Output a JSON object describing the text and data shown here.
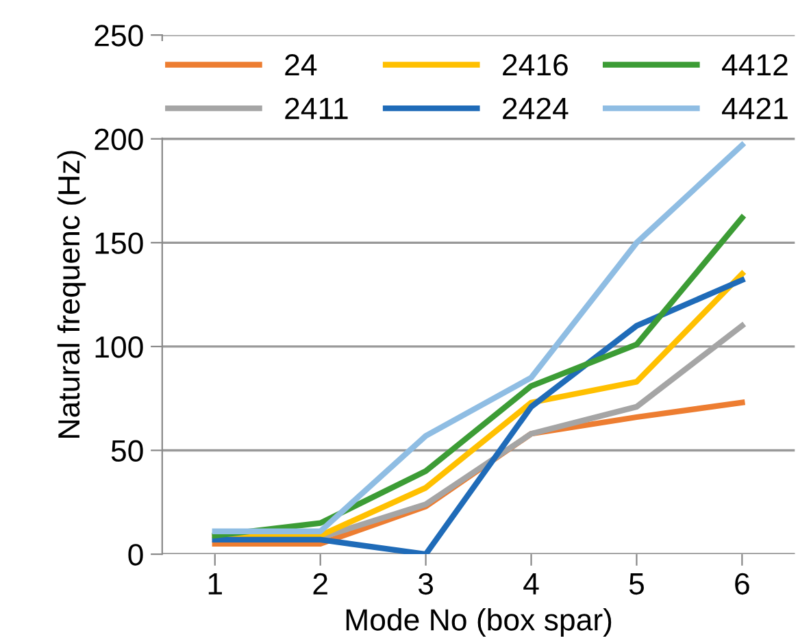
{
  "chart_data": {
    "type": "line",
    "xlabel": "Mode No (box spar)",
    "ylabel": "Natural frequenc (Hz)",
    "categories": [
      "1",
      "2",
      "3",
      "4",
      "5",
      "6"
    ],
    "ylim": [
      0,
      250
    ],
    "yticks": [
      0,
      50,
      100,
      150,
      200,
      250
    ],
    "grid": "y",
    "legend": "top",
    "series": [
      {
        "name": "24",
        "color": "#ed7d31",
        "values": [
          5,
          5,
          23,
          58,
          66,
          73
        ]
      },
      {
        "name": "2411",
        "color": "#a5a5a5",
        "values": [
          8,
          8,
          24,
          58,
          71,
          110
        ]
      },
      {
        "name": "2416",
        "color": "#ffc000",
        "values": [
          9,
          9,
          32,
          73,
          83,
          135
        ]
      },
      {
        "name": "2424",
        "color": "#1f6bb8",
        "values": [
          7,
          7,
          0,
          71,
          110,
          132
        ]
      },
      {
        "name": "4412",
        "color": "#3c9c35",
        "values": [
          9,
          15,
          40,
          81,
          101,
          162
        ]
      },
      {
        "name": "4421",
        "color": "#8fbde3",
        "values": [
          11,
          11,
          57,
          85,
          150,
          197
        ]
      }
    ]
  }
}
